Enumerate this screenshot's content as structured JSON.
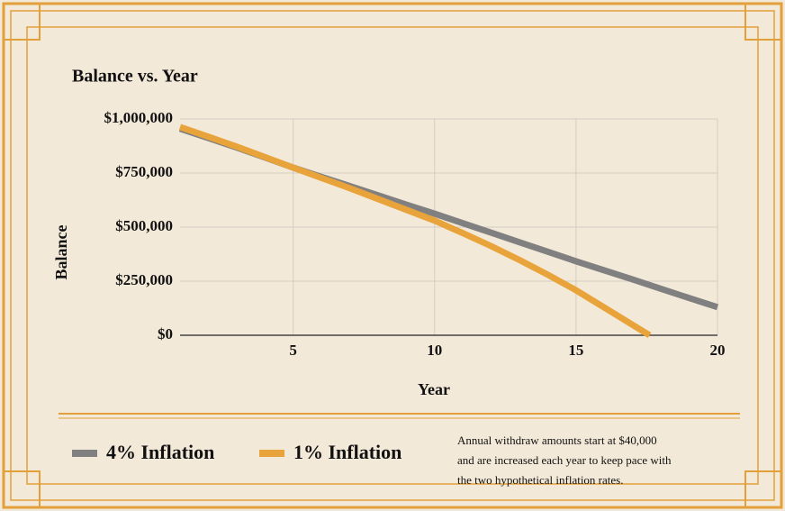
{
  "chart_data": {
    "type": "line",
    "title": "Balance vs. Year",
    "x_label": "Year",
    "y_label": "Balance",
    "xlim": [
      1,
      20
    ],
    "xticks": [
      5,
      10,
      15,
      20
    ],
    "ylim": [
      0,
      1000000
    ],
    "yticks": [
      {
        "value": 0,
        "label": "$0"
      },
      {
        "value": 250000,
        "label": "$250,000"
      },
      {
        "value": 500000,
        "label": "$500,000"
      },
      {
        "value": 750000,
        "label": "$750,000"
      },
      {
        "value": 1000000,
        "label": "$1,000,000"
      }
    ],
    "grid": true,
    "series": [
      {
        "name": "4% Inflation",
        "color": "#808080",
        "x": [
          1,
          2,
          3,
          4,
          5,
          6,
          7,
          8,
          9,
          10,
          11,
          12,
          13,
          14,
          15,
          16,
          17,
          18,
          19,
          20
        ],
        "values": [
          955000,
          912000,
          868000,
          822000,
          775000,
          732000,
          690000,
          647000,
          604000,
          562000,
          518000,
          474000,
          430000,
          386000,
          342000,
          300000,
          258000,
          215000,
          172000,
          130000
        ]
      },
      {
        "name": "1% Inflation",
        "color": "#e8a33a",
        "x": [
          1,
          2,
          3,
          4,
          5,
          6,
          7,
          8,
          9,
          10,
          11,
          12,
          13,
          14,
          15,
          16,
          17,
          17.6
        ],
        "values": [
          963000,
          918000,
          872000,
          824000,
          775000,
          727000,
          680000,
          630000,
          580000,
          530000,
          472000,
          412000,
          348000,
          280000,
          208000,
          128000,
          48000,
          0
        ]
      }
    ],
    "note": [
      "Annual withdraw amounts start at $40,000",
      "and are increased each year to keep pace with",
      "the two hypothetical inflation rates."
    ]
  }
}
